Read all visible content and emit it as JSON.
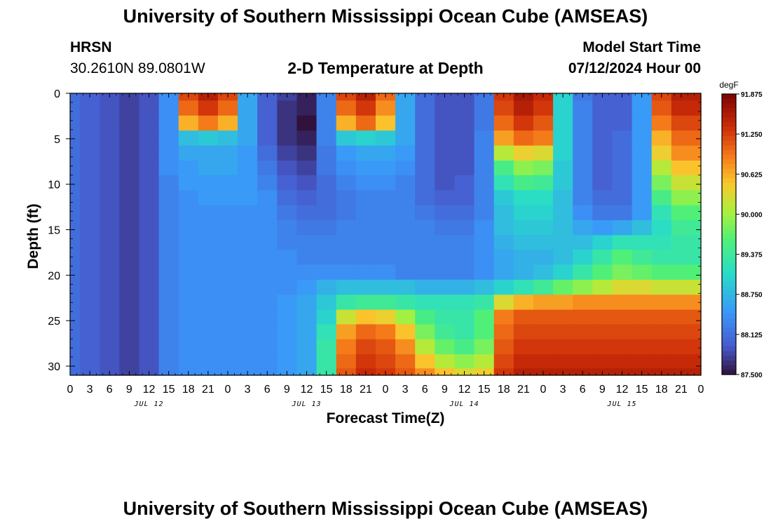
{
  "page": {
    "title": "University of Southern Mississippi Ocean Cube (AMSEAS)",
    "title_repeat": "University of Southern Mississippi Ocean Cube (AMSEAS)",
    "station_name": "HRSN",
    "station_coords": "30.2610N  89.0801W",
    "plot_title": "2-D Temperature at Depth",
    "model_label": "Model Start Time",
    "model_time": "07/12/2024 Hour 00"
  },
  "chart_data": {
    "type": "heatmap",
    "title": "2-D Temperature at Depth",
    "xlabel": "Forecast Time(Z)",
    "ylabel": "Depth (ft)",
    "x_range_hours": [
      0,
      96
    ],
    "ylim": [
      0,
      31
    ],
    "y_inverted": true,
    "x_tick_labels": [
      "0",
      "3",
      "6",
      "9",
      "12",
      "15",
      "18",
      "21",
      "0",
      "3",
      "6",
      "9",
      "12",
      "15",
      "18",
      "21",
      "0",
      "3",
      "6",
      "9",
      "12",
      "15",
      "18",
      "21",
      "0",
      "3",
      "6",
      "9",
      "12",
      "15",
      "18",
      "21",
      "0"
    ],
    "y_tick_labels": [
      "0",
      "5",
      "10",
      "15",
      "20",
      "25",
      "30"
    ],
    "y_ticks": [
      0,
      5,
      10,
      15,
      20,
      25,
      30
    ],
    "date_labels": [
      {
        "label": "JUL 12",
        "hour": 12
      },
      {
        "label": "JUL 13",
        "hour": 36
      },
      {
        "label": "JUL 14",
        "hour": 60
      },
      {
        "label": "JUL 15",
        "hour": 84
      }
    ],
    "colorbar": {
      "unit": "degF",
      "min": 87.5,
      "max": 91.875,
      "tick_labels": [
        "91.875",
        "91.250",
        "90.625",
        "90.000",
        "89.375",
        "88.750",
        "88.125",
        "87.500"
      ],
      "ticks": [
        91.875,
        91.25,
        90.625,
        90.0,
        89.375,
        88.75,
        88.125,
        87.5
      ]
    },
    "depth_levels_ft": [
      0,
      1.6,
      3.3,
      4.9,
      6.6,
      8.2,
      9.8,
      11.5,
      13.1,
      14.8,
      16.4,
      18.0,
      19.7,
      21.3,
      23.0,
      24.6,
      26.2,
      27.9,
      29.5,
      31.0
    ],
    "time_hours": [
      0,
      3,
      6,
      9,
      12,
      15,
      18,
      21,
      24,
      27,
      30,
      33,
      36,
      39,
      42,
      45,
      48,
      51,
      54,
      57,
      60,
      63,
      66,
      69,
      72,
      75,
      78,
      81,
      84,
      87,
      90,
      93,
      96
    ],
    "temperature_degF": [
      [
        88.1,
        88.0,
        87.9,
        87.8,
        87.9,
        88.4,
        91.2,
        91.5,
        91.2,
        88.6,
        88.0,
        87.8,
        87.6,
        88.3,
        91.2,
        91.5,
        91.0,
        88.6,
        88.1,
        87.9,
        87.9,
        88.2,
        91.3,
        91.6,
        91.4,
        89.0,
        88.2,
        88.0,
        88.0,
        88.5,
        91.2,
        91.5,
        91.5
      ],
      [
        88.1,
        88.0,
        87.9,
        87.8,
        87.9,
        88.4,
        91.0,
        91.3,
        91.0,
        88.6,
        88.0,
        87.7,
        87.6,
        88.3,
        91.0,
        91.3,
        90.8,
        88.6,
        88.1,
        87.9,
        87.9,
        88.2,
        91.2,
        91.5,
        91.3,
        89.0,
        88.3,
        88.0,
        88.0,
        88.5,
        91.1,
        91.4,
        91.4
      ],
      [
        88.1,
        88.0,
        87.9,
        87.8,
        87.9,
        88.4,
        90.6,
        90.9,
        90.6,
        88.6,
        88.0,
        87.7,
        87.5,
        88.3,
        90.6,
        91.0,
        90.5,
        88.6,
        88.1,
        87.9,
        87.9,
        88.2,
        91.0,
        91.3,
        91.1,
        89.0,
        88.3,
        88.0,
        88.0,
        88.5,
        90.9,
        91.2,
        91.2
      ],
      [
        88.1,
        88.0,
        87.9,
        87.8,
        87.9,
        88.4,
        88.8,
        88.9,
        88.8,
        88.6,
        88.0,
        87.7,
        87.6,
        88.3,
        88.9,
        89.0,
        88.9,
        88.6,
        88.1,
        87.9,
        87.9,
        88.3,
        90.7,
        91.0,
        90.9,
        89.0,
        88.3,
        88.0,
        88.1,
        88.5,
        90.6,
        91.0,
        91.0
      ],
      [
        88.1,
        88.0,
        87.9,
        87.8,
        87.9,
        88.4,
        88.6,
        88.6,
        88.6,
        88.5,
        88.1,
        87.8,
        87.7,
        88.2,
        88.5,
        88.6,
        88.6,
        88.5,
        88.1,
        87.9,
        87.9,
        88.3,
        90.1,
        90.4,
        90.3,
        89.0,
        88.3,
        88.0,
        88.1,
        88.5,
        90.4,
        90.8,
        90.8
      ],
      [
        88.1,
        88.0,
        87.9,
        87.8,
        87.9,
        88.4,
        88.5,
        88.6,
        88.6,
        88.5,
        88.2,
        87.9,
        87.8,
        88.2,
        88.4,
        88.5,
        88.5,
        88.4,
        88.1,
        87.9,
        87.9,
        88.3,
        89.5,
        89.9,
        89.8,
        88.9,
        88.3,
        88.0,
        88.1,
        88.5,
        90.1,
        90.5,
        90.5
      ],
      [
        88.1,
        88.0,
        87.9,
        87.8,
        87.9,
        88.3,
        88.5,
        88.5,
        88.5,
        88.5,
        88.3,
        88.0,
        87.9,
        88.1,
        88.3,
        88.4,
        88.4,
        88.3,
        88.1,
        87.9,
        88.0,
        88.3,
        89.2,
        89.5,
        89.4,
        88.9,
        88.3,
        88.0,
        88.1,
        88.5,
        89.8,
        90.2,
        90.2
      ],
      [
        88.1,
        88.0,
        87.9,
        87.8,
        87.9,
        88.3,
        88.4,
        88.5,
        88.5,
        88.5,
        88.4,
        88.1,
        88.0,
        88.1,
        88.2,
        88.3,
        88.3,
        88.3,
        88.1,
        88.0,
        88.0,
        88.3,
        88.9,
        89.1,
        89.1,
        88.8,
        88.3,
        88.1,
        88.1,
        88.5,
        89.5,
        89.9,
        89.9
      ],
      [
        88.1,
        88.0,
        87.9,
        87.8,
        87.9,
        88.3,
        88.4,
        88.4,
        88.4,
        88.4,
        88.4,
        88.2,
        88.1,
        88.1,
        88.2,
        88.3,
        88.3,
        88.3,
        88.2,
        88.1,
        88.1,
        88.3,
        88.8,
        89.0,
        89.0,
        88.8,
        88.4,
        88.2,
        88.2,
        88.5,
        89.2,
        89.6,
        89.6
      ],
      [
        88.1,
        88.0,
        87.9,
        87.8,
        87.9,
        88.3,
        88.4,
        88.4,
        88.4,
        88.4,
        88.4,
        88.3,
        88.2,
        88.2,
        88.3,
        88.3,
        88.3,
        88.3,
        88.3,
        88.2,
        88.2,
        88.4,
        88.8,
        88.9,
        88.9,
        88.8,
        88.6,
        88.5,
        88.6,
        88.8,
        89.1,
        89.4,
        89.4
      ],
      [
        88.1,
        88.0,
        87.9,
        87.8,
        87.9,
        88.3,
        88.4,
        88.4,
        88.4,
        88.4,
        88.4,
        88.3,
        88.3,
        88.3,
        88.3,
        88.3,
        88.3,
        88.3,
        88.3,
        88.3,
        88.3,
        88.4,
        88.7,
        88.8,
        88.8,
        88.8,
        88.8,
        89.0,
        89.2,
        89.2,
        89.2,
        89.3,
        89.3
      ],
      [
        88.1,
        88.0,
        87.9,
        87.8,
        87.9,
        88.3,
        88.4,
        88.4,
        88.4,
        88.4,
        88.4,
        88.4,
        88.3,
        88.3,
        88.3,
        88.3,
        88.3,
        88.3,
        88.3,
        88.3,
        88.3,
        88.4,
        88.6,
        88.7,
        88.7,
        88.8,
        89.0,
        89.3,
        89.6,
        89.4,
        89.3,
        89.3,
        89.3
      ],
      [
        88.1,
        88.0,
        87.9,
        87.8,
        87.9,
        88.3,
        88.4,
        88.4,
        88.4,
        88.4,
        88.4,
        88.4,
        88.4,
        88.4,
        88.4,
        88.4,
        88.4,
        88.3,
        88.3,
        88.3,
        88.3,
        88.4,
        88.6,
        88.7,
        88.8,
        89.0,
        89.3,
        89.6,
        89.8,
        89.7,
        89.6,
        89.6,
        89.6
      ],
      [
        88.1,
        88.0,
        87.9,
        87.8,
        87.9,
        88.3,
        88.4,
        88.4,
        88.4,
        88.4,
        88.4,
        88.4,
        88.5,
        88.7,
        88.8,
        88.8,
        88.8,
        88.8,
        88.7,
        88.7,
        88.7,
        88.8,
        89.0,
        89.2,
        89.4,
        89.7,
        89.9,
        90.1,
        90.3,
        90.3,
        90.2,
        90.2,
        90.2
      ],
      [
        88.1,
        88.0,
        87.9,
        87.8,
        87.9,
        88.3,
        88.4,
        88.4,
        88.4,
        88.4,
        88.4,
        88.5,
        88.6,
        88.9,
        89.3,
        89.4,
        89.4,
        89.3,
        89.2,
        89.2,
        89.2,
        89.3,
        90.3,
        90.6,
        90.7,
        90.7,
        90.8,
        90.8,
        90.8,
        90.8,
        90.8,
        90.8,
        90.8
      ],
      [
        88.1,
        88.0,
        87.9,
        87.8,
        87.9,
        88.3,
        88.4,
        88.4,
        88.4,
        88.4,
        88.4,
        88.5,
        88.6,
        89.0,
        90.2,
        90.5,
        90.4,
        90.0,
        89.5,
        89.3,
        89.3,
        89.6,
        90.9,
        91.1,
        91.1,
        91.1,
        91.1,
        91.1,
        91.1,
        91.1,
        91.1,
        91.1,
        91.1
      ],
      [
        88.1,
        88.0,
        87.9,
        87.8,
        87.9,
        88.3,
        88.4,
        88.4,
        88.4,
        88.4,
        88.4,
        88.5,
        88.6,
        89.2,
        90.7,
        91.0,
        90.9,
        90.5,
        89.8,
        89.4,
        89.3,
        89.6,
        91.0,
        91.2,
        91.2,
        91.2,
        91.2,
        91.2,
        91.2,
        91.2,
        91.2,
        91.2,
        91.2
      ],
      [
        88.1,
        88.0,
        87.9,
        87.8,
        87.9,
        88.3,
        88.4,
        88.4,
        88.4,
        88.4,
        88.4,
        88.5,
        88.6,
        89.3,
        90.9,
        91.2,
        91.1,
        90.8,
        90.1,
        89.7,
        89.5,
        89.8,
        91.1,
        91.3,
        91.3,
        91.3,
        91.3,
        91.3,
        91.3,
        91.3,
        91.3,
        91.3,
        91.3
      ],
      [
        88.1,
        88.0,
        87.9,
        87.8,
        87.9,
        88.3,
        88.4,
        88.4,
        88.4,
        88.4,
        88.4,
        88.5,
        88.6,
        89.3,
        91.0,
        91.3,
        91.2,
        91.0,
        90.5,
        90.1,
        89.9,
        90.1,
        91.2,
        91.4,
        91.4,
        91.4,
        91.4,
        91.4,
        91.4,
        91.4,
        91.4,
        91.4,
        91.4
      ],
      [
        88.1,
        88.0,
        87.9,
        87.8,
        87.9,
        88.3,
        88.4,
        88.4,
        88.4,
        88.4,
        88.4,
        88.5,
        88.6,
        89.3,
        91.1,
        91.4,
        91.3,
        91.1,
        90.8,
        90.5,
        90.3,
        90.4,
        91.3,
        91.5,
        91.5,
        91.5,
        91.5,
        91.5,
        91.5,
        91.5,
        91.5,
        91.5,
        91.5
      ]
    ]
  }
}
